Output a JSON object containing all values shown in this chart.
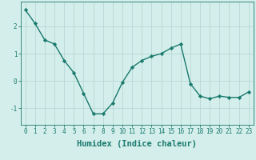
{
  "x": [
    0,
    1,
    2,
    3,
    4,
    5,
    6,
    7,
    8,
    9,
    10,
    11,
    12,
    13,
    14,
    15,
    16,
    17,
    18,
    19,
    20,
    21,
    22,
    23
  ],
  "y": [
    2.6,
    2.1,
    1.5,
    1.35,
    0.75,
    0.3,
    -0.45,
    -1.2,
    -1.2,
    -0.8,
    -0.05,
    0.5,
    0.75,
    0.9,
    1.0,
    1.2,
    1.35,
    -0.1,
    -0.55,
    -0.65,
    -0.55,
    -0.6,
    -0.6,
    -0.4
  ],
  "line_color": "#1a7a6e",
  "marker": "D",
  "marker_size": 2.2,
  "bg_color": "#d4eeeb",
  "grid_color": "#b8d8d5",
  "xlabel": "Humidex (Indice chaleur)",
  "xlabel_fontsize": 7.5,
  "yticks": [
    -1,
    0,
    1,
    2
  ],
  "xticks": [
    0,
    1,
    2,
    3,
    4,
    5,
    6,
    7,
    8,
    9,
    10,
    11,
    12,
    13,
    14,
    15,
    16,
    17,
    18,
    19,
    20,
    21,
    22,
    23
  ],
  "xlim": [
    -0.5,
    23.5
  ],
  "ylim": [
    -1.6,
    2.9
  ],
  "tick_fontsize": 5.5,
  "tick_color": "#1a7a6e",
  "spine_color": "#1a7a6e",
  "linewidth": 1.0
}
